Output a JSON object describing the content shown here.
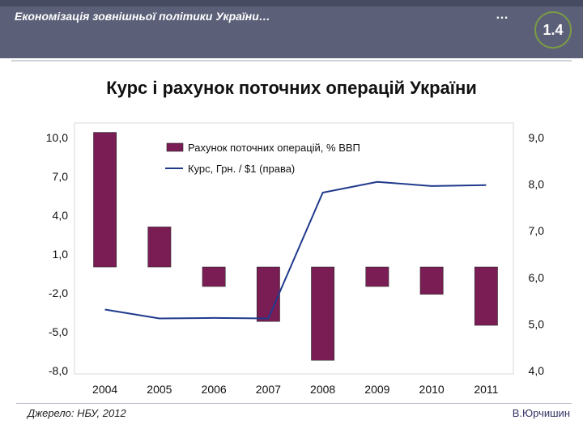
{
  "slide": {
    "title": "Економізація зовнішньої політики України…",
    "dots": "…",
    "number": "1.4"
  },
  "chart_heading": "Курс і рахунок поточних операцій України",
  "footer": {
    "source": "Джерело: НБУ, 2012",
    "author": "В.Юрчишин"
  },
  "colors": {
    "header_bg": "#5b6078",
    "bar": "#7b1d55",
    "line": "#1f3a8c",
    "number_ring": "#7a9a46"
  },
  "chart_data": {
    "type": "bar",
    "title": "Курс і рахунок поточних операцій України",
    "categories": [
      "2004",
      "2005",
      "2006",
      "2007",
      "2008",
      "2009",
      "2010",
      "2011"
    ],
    "series": [
      {
        "name": "Рахунок поточних операцій, % ВВП",
        "type": "bar",
        "axis": "left",
        "values": [
          10.4,
          3.1,
          -1.5,
          -4.2,
          -7.2,
          -1.5,
          -2.1,
          -4.5
        ]
      },
      {
        "name": "Курс, Грн. / $1 (права)",
        "type": "line",
        "axis": "right",
        "values": [
          5.31,
          5.12,
          5.13,
          5.12,
          7.82,
          8.05,
          7.96,
          7.98
        ]
      }
    ],
    "left_axis": {
      "min": -8.0,
      "max": 10.0,
      "ticks": [
        "10,0",
        "7,0",
        "4,0",
        "1,0",
        "-2,0",
        "-5,0",
        "-8,0"
      ]
    },
    "right_axis": {
      "min": 4.0,
      "max": 9.0,
      "ticks": [
        "9,0",
        "8,0",
        "7,0",
        "6,0",
        "5,0",
        "4,0"
      ]
    },
    "legend_position": "top-center",
    "grid": false
  }
}
